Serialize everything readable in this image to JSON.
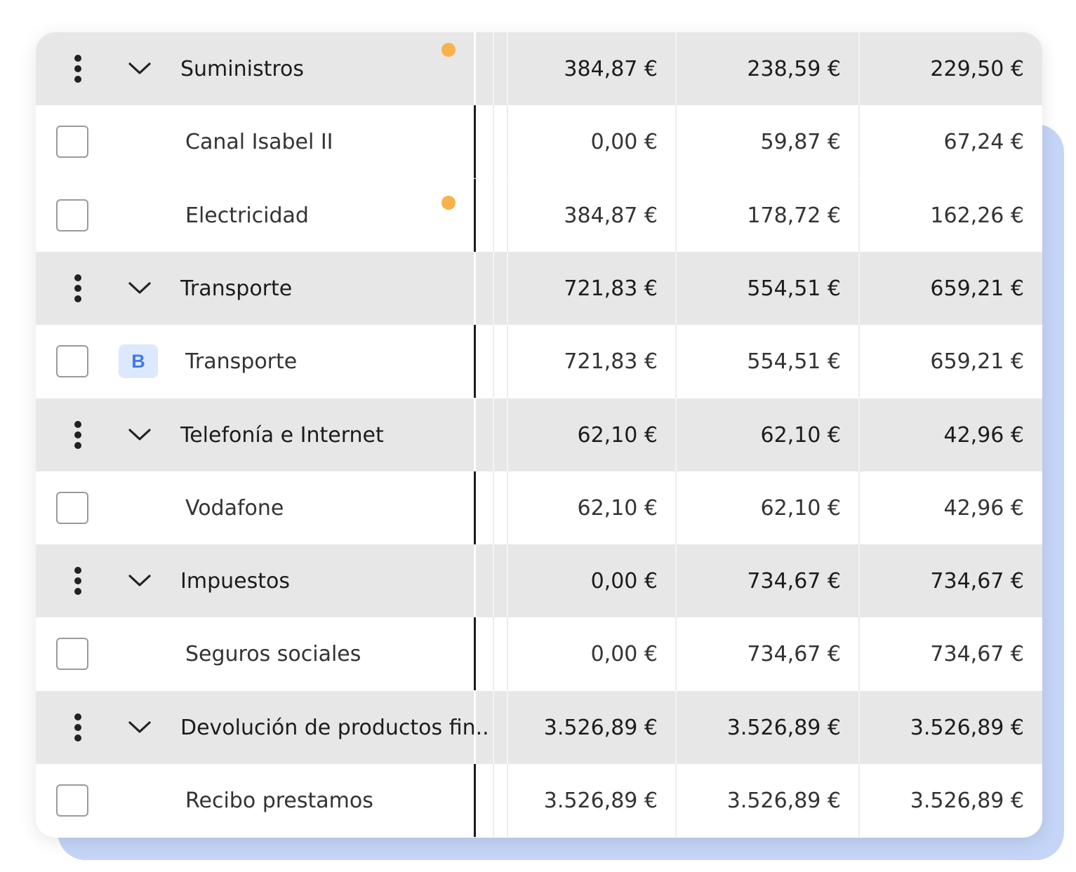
{
  "table": {
    "groups": [
      {
        "name": "Suministros",
        "pending_indicator": true,
        "amounts": [
          "384,87 €",
          "238,59 €",
          "229,50 €"
        ],
        "items": [
          {
            "name": "Canal Isabel II",
            "badge": "",
            "pending_indicator": false,
            "amounts": [
              "0,00 €",
              "59,87 €",
              "67,24 €"
            ]
          },
          {
            "name": "Electricidad",
            "badge": "",
            "pending_indicator": true,
            "amounts": [
              "384,87 €",
              "178,72 €",
              "162,26 €"
            ]
          }
        ]
      },
      {
        "name": "Transporte",
        "pending_indicator": false,
        "amounts": [
          "721,83 €",
          "554,51 €",
          "659,21 €"
        ],
        "items": [
          {
            "name": "Transporte",
            "badge": "B",
            "pending_indicator": false,
            "amounts": [
              "721,83 €",
              "554,51 €",
              "659,21 €"
            ]
          }
        ]
      },
      {
        "name": "Telefonía e Internet",
        "pending_indicator": false,
        "amounts": [
          "62,10 €",
          "62,10 €",
          "42,96 €"
        ],
        "items": [
          {
            "name": "Vodafone",
            "badge": "",
            "pending_indicator": false,
            "amounts": [
              "62,10 €",
              "62,10 €",
              "42,96 €"
            ]
          }
        ]
      },
      {
        "name": "Impuestos",
        "pending_indicator": false,
        "amounts": [
          "0,00 €",
          "734,67 €",
          "734,67 €"
        ],
        "items": [
          {
            "name": "Seguros sociales",
            "badge": "",
            "pending_indicator": false,
            "amounts": [
              "0,00 €",
              "734,67 €",
              "734,67 €"
            ]
          }
        ]
      },
      {
        "name": "Devolución de productos fin...",
        "pending_indicator": false,
        "amounts": [
          "3.526,89 €",
          "3.526,89 €",
          "3.526,89 €"
        ],
        "items": [
          {
            "name": "Recibo prestamos",
            "badge": "",
            "pending_indicator": false,
            "amounts": [
              "3.526,89 €",
              "3.526,89 €",
              "3.526,89 €"
            ]
          }
        ]
      }
    ]
  },
  "icons": {
    "group_menu": "more-vertical-icon",
    "group_toggle": "chevron-down-icon",
    "row_select": "checkbox",
    "pending": "dot-indicator"
  },
  "colors": {
    "group_background": "#e7e7e7",
    "pending_dot": "#f7b24a",
    "badge_background": "#dce8fd",
    "badge_text": "#3f7be8",
    "backdrop": "#c4d5f7"
  }
}
